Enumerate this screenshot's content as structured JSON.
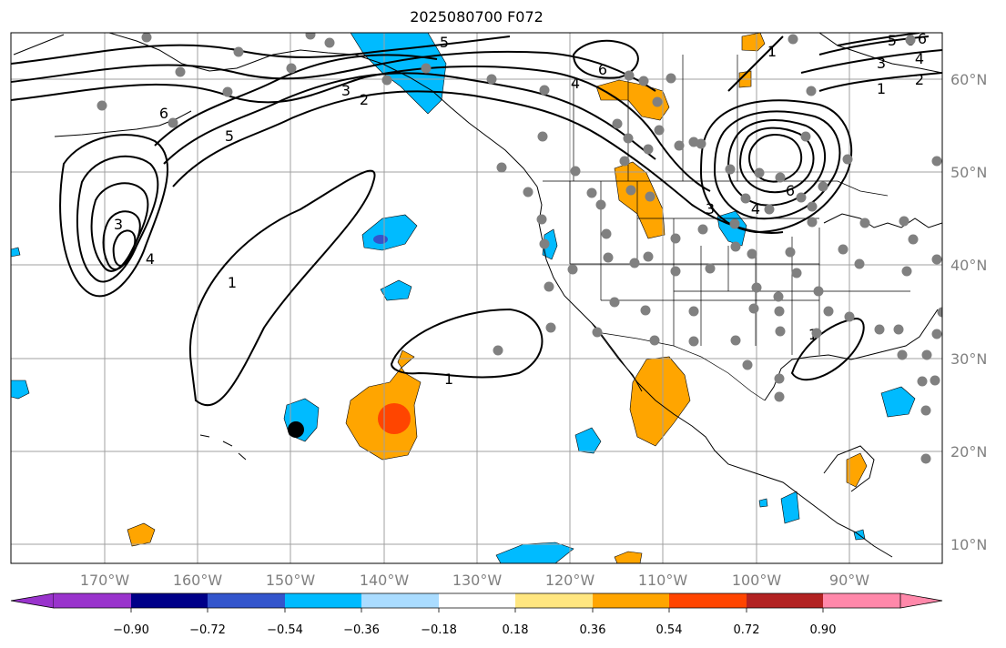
{
  "title": "2025080700 F072",
  "map": {
    "projection": "cylindrical",
    "lon_range": [
      -180,
      -80
    ],
    "lat_range": [
      8,
      65
    ],
    "gridlines": true,
    "lon_labels": [
      "170°W",
      "160°W",
      "150°W",
      "140°W",
      "130°W",
      "120°W",
      "110°W",
      "100°W",
      "90°W"
    ],
    "lat_labels": [
      "60°N",
      "50°N",
      "40°N",
      "30°N",
      "20°N",
      "10°N"
    ],
    "contour_color": "#000000",
    "station_color": "#808080",
    "contour_labels": [
      "5",
      "6",
      "4",
      "2",
      "3",
      "1",
      "5",
      "6",
      "3",
      "4",
      "6",
      "3",
      "4",
      "6",
      "1",
      "1",
      "2",
      "3",
      "4",
      "5",
      "6",
      "1",
      "1"
    ]
  },
  "colorbar": {
    "colors": [
      "#9933cc",
      "#000088",
      "#3355cc",
      "#00bbff",
      "#aadcff",
      "#ffffff",
      "#ffe680",
      "#ffa500",
      "#ff4500",
      "#b22222",
      "#ff88aa"
    ],
    "ticks": [
      "−0.90",
      "−0.72",
      "−0.54",
      "−0.36",
      "−0.18",
      "0.18",
      "0.36",
      "0.54",
      "0.72",
      "0.90"
    ],
    "extend": "both"
  }
}
